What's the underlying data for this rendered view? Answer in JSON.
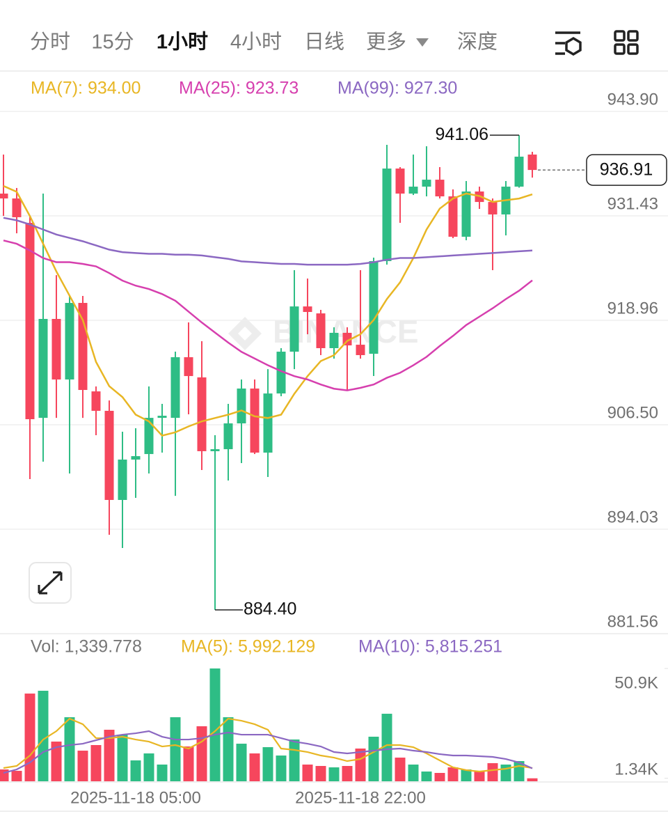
{
  "tabs": [
    "分时",
    "15分",
    "1小时",
    "4小时",
    "日线",
    "更多",
    "深度"
  ],
  "active_tab": "1小时",
  "watermark": "BINANCE",
  "chart_data": {
    "type": "candlestick",
    "categories": [
      null,
      null,
      null,
      null,
      null,
      null,
      null,
      null,
      null,
      null,
      "2025-11-18 05:00",
      null,
      null,
      null,
      null,
      null,
      null,
      null,
      null,
      null,
      null,
      null,
      null,
      null,
      null,
      null,
      null,
      "2025-11-18 22:00",
      null,
      null,
      null,
      null,
      null,
      null,
      null,
      null,
      null,
      null,
      null,
      null,
      null
    ],
    "up_color": "#2ebd85",
    "down_color": "#f6465d",
    "open": [
      934.09,
      933.51,
      930.6,
      907.32,
      919.13,
      911.9,
      921.04,
      910.48,
      908.16,
      897.52,
      902.34,
      903.0,
      907.32,
      907.32,
      914.56,
      912.15,
      903.34,
      903.58,
      906.66,
      910.82,
      903.17,
      910.23,
      915.22,
      920.62,
      919.79,
      915.64,
      917.47,
      916.05,
      914.97,
      926.03,
      937.08,
      934.09,
      934.92,
      935.75,
      933.76,
      928.94,
      934.34,
      933.09,
      931.6,
      934.92,
      938.75
    ],
    "high": [
      938.75,
      934.76,
      931.43,
      934.09,
      924.36,
      921.87,
      921.87,
      911.07,
      909.4,
      905.66,
      906.08,
      911.07,
      908.99,
      915.22,
      918.71,
      916.47,
      905.25,
      908.99,
      911.9,
      911.9,
      913.14,
      915.64,
      924.95,
      923.95,
      920.21,
      918.13,
      918.13,
      924.95,
      926.44,
      939.91,
      937.25,
      938.75,
      939.74,
      937.25,
      934.59,
      935.59,
      934.92,
      933.51,
      935.59,
      941.06,
      939.08
    ],
    "low": [
      931.43,
      929.35,
      900.01,
      902.09,
      907.32,
      900.68,
      907.32,
      905.25,
      893.36,
      891.78,
      897.77,
      900.68,
      903.17,
      898.01,
      907.74,
      901.09,
      884.4,
      899.84,
      901.92,
      903.0,
      900.26,
      909.9,
      913.14,
      917.3,
      914.81,
      914.39,
      910.65,
      914.39,
      912.31,
      925.61,
      930.6,
      933.92,
      933.76,
      933.51,
      928.77,
      928.52,
      932.26,
      924.95,
      929.1,
      934.8,
      936.0
    ],
    "close": [
      933.51,
      931.27,
      907.16,
      919.13,
      911.9,
      921.04,
      910.65,
      908.16,
      897.52,
      902.34,
      902.75,
      907.32,
      907.57,
      914.56,
      912.31,
      903.34,
      903.58,
      906.66,
      910.82,
      903.17,
      910.23,
      915.22,
      920.62,
      919.96,
      915.64,
      917.47,
      915.97,
      914.81,
      926.03,
      937.08,
      934.09,
      934.92,
      935.75,
      933.76,
      928.94,
      934.34,
      933.09,
      931.6,
      934.92,
      938.5,
      936.91
    ],
    "series": [
      {
        "name": "MA(7): 934.00",
        "color": "#e8b624",
        "values": [
          935.0,
          934.3,
          931.4,
          928.1,
          924.8,
          921.9,
          919.0,
          914.0,
          911.1,
          909.8,
          907.7,
          906.9,
          905.2,
          905.6,
          906.3,
          906.9,
          907.3,
          907.7,
          908.2,
          907.5,
          907.3,
          907.7,
          910.2,
          912.3,
          914.1,
          914.8,
          916.5,
          917.3,
          919.0,
          921.5,
          923.5,
          926.4,
          929.8,
          932.3,
          933.5,
          934.1,
          933.8,
          933.1,
          933.3,
          933.5,
          934.0
        ]
      },
      {
        "name": "MA(25): 923.73",
        "color": "#d63fae",
        "values": [
          928.5,
          928.1,
          927.3,
          926.4,
          925.9,
          925.9,
          925.7,
          925.4,
          924.6,
          923.7,
          923.1,
          922.7,
          922.1,
          921.3,
          920.0,
          918.7,
          917.5,
          916.3,
          915.2,
          914.4,
          913.6,
          912.9,
          912.3,
          911.9,
          911.3,
          910.8,
          910.6,
          910.9,
          911.3,
          912.1,
          912.7,
          913.6,
          914.6,
          915.9,
          917.1,
          918.4,
          919.4,
          920.4,
          921.5,
          922.5,
          923.73
        ]
      },
      {
        "name": "MA(99): 927.30",
        "color": "#8b68c2",
        "values": [
          931.2,
          930.9,
          930.4,
          929.8,
          929.2,
          928.8,
          928.4,
          927.9,
          927.4,
          927.1,
          927.0,
          926.9,
          926.9,
          926.8,
          926.8,
          926.7,
          926.5,
          926.3,
          926.0,
          925.9,
          925.8,
          925.7,
          925.7,
          925.6,
          925.6,
          925.6,
          925.6,
          925.7,
          925.9,
          926.2,
          926.4,
          926.4,
          926.5,
          926.6,
          926.7,
          926.8,
          926.9,
          927.0,
          927.1,
          927.2,
          927.3
        ]
      }
    ],
    "ylim": [
      881.56,
      943.9
    ],
    "yticks": [
      {
        "value": 943.9,
        "label": "943.90"
      },
      931.43,
      918.96,
      {
        "value": 906.5,
        "label": "906.50"
      },
      894.03,
      881.56
    ],
    "grid": true,
    "high_marker": {
      "value": 941.06,
      "label": "941.06"
    },
    "low_marker": {
      "value": 884.4,
      "label": "884.40"
    },
    "last_price": {
      "value": 936.91,
      "label": "936.91"
    },
    "volume": {
      "name": "Vol: 1,339.778",
      "label_color": "#777777",
      "values": [
        5340,
        4710,
        39580,
        40840,
        17910,
        28900,
        13820,
        16340,
        23250,
        21050,
        9420,
        12570,
        7540,
        28900,
        15710,
        24820,
        50900,
        28900,
        16960,
        12570,
        15390,
        11620,
        18850,
        7540,
        6910,
        6280,
        6910,
        14770,
        20110,
        30470,
        10680,
        7540,
        4400,
        3770,
        6280,
        5340,
        4400,
        8170,
        7540,
        9110,
        1339.778
      ],
      "series": [
        {
          "name": "MA(5): 5,992.129",
          "color": "#e8b624",
          "values": [
            5966,
            6908,
            11618,
            18840,
            22608,
            28260,
            25748,
            19468,
            19468,
            20096,
            18840,
            17898,
            15700,
            16328,
            14758,
            17898,
            22608,
            28260,
            27318,
            25748,
            23236,
            14758,
            14130,
            13188,
            11618,
            10676,
            9106,
            10048,
            13188,
            16328,
            16328,
            15386,
            12560,
            9420,
            6280,
            5024,
            4396,
            5024,
            5652,
            6908,
            5992.129
          ]
        },
        {
          "name": "MA(10): 5,815.251",
          "color": "#8b68c2",
          "values": [
            3768,
            5338,
            8478,
            13188,
            15386,
            16328,
            16956,
            18526,
            20096,
            21038,
            21666,
            22608,
            20096,
            18840,
            18840,
            19468,
            21038,
            21980,
            21038,
            21038,
            21038,
            19468,
            17898,
            16956,
            15700,
            13188,
            12560,
            13188,
            13816,
            14444,
            14758,
            13816,
            13188,
            12246,
            11618,
            11618,
            11304,
            10990,
            10048,
            8478,
            5815.251
          ]
        }
      ],
      "ylim": [
        0,
        50900
      ],
      "yticks": [
        {
          "value": 50900,
          "label": "50.9K"
        },
        {
          "value": 1340,
          "label": "1.34K"
        }
      ]
    }
  }
}
